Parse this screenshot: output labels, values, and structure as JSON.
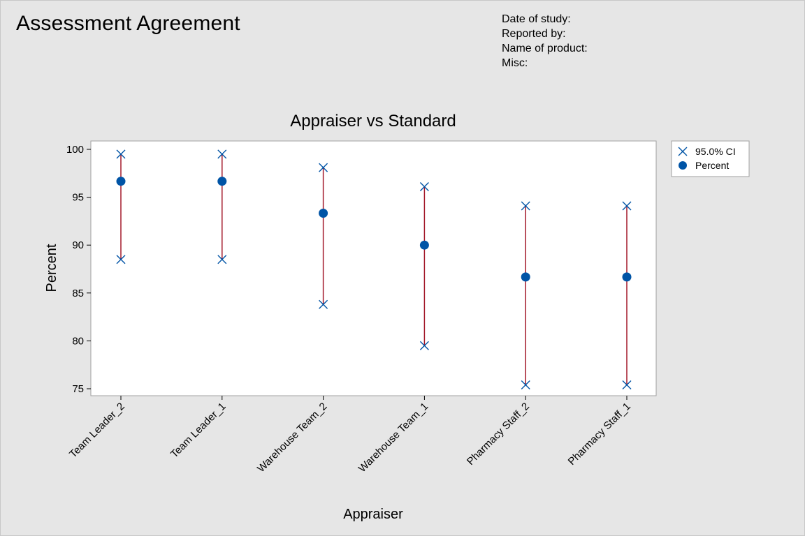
{
  "report": {
    "title": "Assessment Agreement",
    "meta": [
      "Date of study:",
      "Reported by:",
      "Name of product:",
      "Misc:"
    ]
  },
  "colors": {
    "marker": "#0054a6",
    "ci_line": "#a3182a",
    "plot_bg": "#ffffff",
    "page_bg": "#e6e6e6",
    "frame": "#a0a0a0"
  },
  "chart_data": {
    "type": "scatter",
    "title": "Appraiser vs Standard",
    "xlabel": "Appraiser",
    "ylabel": "Percent",
    "ylim": [
      75,
      100
    ],
    "yticks": [
      75,
      80,
      85,
      90,
      95,
      100
    ],
    "categories": [
      "Team Leader_2",
      "Team Leader_1",
      "Warehouse Team_2",
      "Warehouse Team_1",
      "Pharmacy Staff_2",
      "Pharmacy Staff_1"
    ],
    "series": [
      {
        "name": "Percent",
        "marker": "filled-circle",
        "values": [
          96.67,
          96.67,
          93.33,
          90.0,
          86.67,
          86.67
        ]
      },
      {
        "name": "95.0% CI",
        "marker": "x",
        "upper": [
          99.5,
          99.5,
          98.1,
          96.1,
          94.1,
          94.1
        ],
        "lower": [
          88.5,
          88.5,
          83.8,
          79.5,
          75.4,
          75.4
        ]
      }
    ],
    "legend": {
      "position": "right",
      "entries": [
        "95.0% CI",
        "Percent"
      ]
    }
  }
}
